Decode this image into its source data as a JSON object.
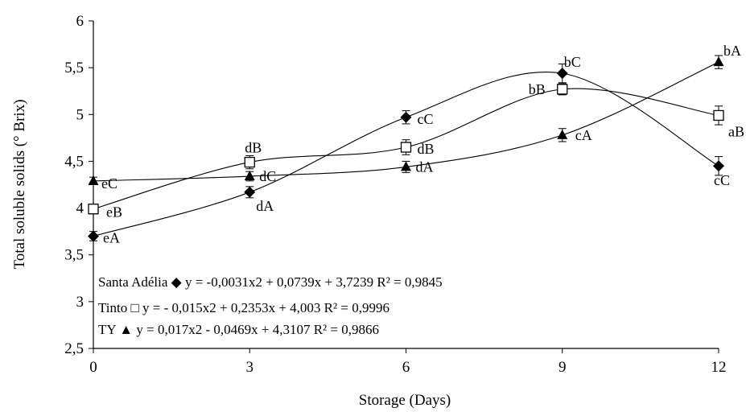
{
  "chart_data": {
    "type": "scatter",
    "title": "",
    "xlabel": "Storage (Days)",
    "ylabel": "Total soluble solids (° Brix)",
    "xlim": [
      0,
      12
    ],
    "ylim": [
      2.5,
      6
    ],
    "x_ticks": [
      "0",
      "3",
      "6",
      "9",
      "12"
    ],
    "y_ticks": [
      "2,5",
      "3",
      "3,5",
      "4",
      "4,5",
      "5",
      "5,5",
      "6"
    ],
    "grid": false,
    "series": [
      {
        "name": "Santa Adélia",
        "marker": "diamond",
        "x": [
          0,
          3,
          6,
          9,
          12
        ],
        "y": [
          3.7,
          4.17,
          4.97,
          5.44,
          4.45
        ],
        "error": [
          0.05,
          0.06,
          0.07,
          0.1,
          0.1
        ],
        "point_labels": [
          "eA",
          "dA",
          "cC",
          "bC",
          "cC"
        ],
        "equation": "y = -0,0031x2 + 0,0739x + 3,7239 R² = 0,9845"
      },
      {
        "name": "Tinto",
        "marker": "square",
        "x": [
          0,
          3,
          6,
          9,
          12
        ],
        "y": [
          3.99,
          4.49,
          4.65,
          5.27,
          4.99
        ],
        "error": [
          0.05,
          0.07,
          0.08,
          0.06,
          0.1
        ],
        "point_labels": [
          "eB",
          "dB",
          "dB",
          "bB",
          "aB"
        ],
        "equation": "y = - 0,015x2 + 0,2353x + 4,003 R² = 0,9996"
      },
      {
        "name": "TY",
        "marker": "triangle",
        "x": [
          0,
          3,
          6,
          9,
          12
        ],
        "y": [
          4.29,
          4.34,
          4.44,
          4.78,
          5.56
        ],
        "error": [
          0.04,
          0.05,
          0.06,
          0.07,
          0.07
        ],
        "point_labels": [
          "eC",
          "dC",
          "dA",
          "cA",
          "bA"
        ],
        "equation": "y =  0,017x2 - 0,0469x + 4,3107 R² = 0,9866"
      }
    ],
    "legend_symbols": [
      "◆",
      "□",
      "▲"
    ]
  }
}
